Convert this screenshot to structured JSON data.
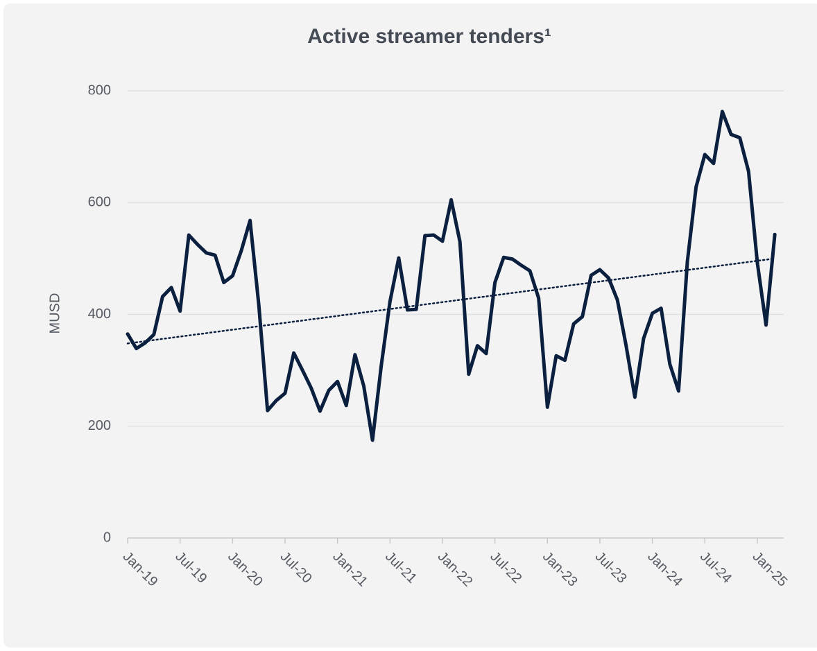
{
  "chart_data": {
    "type": "line",
    "title": "Active streamer tenders¹",
    "y_label": "MUSD",
    "categories": [
      "Jan-19",
      null,
      null,
      null,
      null,
      null,
      "Jul-19",
      null,
      null,
      null,
      null,
      null,
      "Jan-20",
      null,
      null,
      null,
      null,
      null,
      "Jul-20",
      null,
      null,
      null,
      null,
      null,
      "Jan-21",
      null,
      null,
      null,
      null,
      null,
      "Jul-21",
      null,
      null,
      null,
      null,
      null,
      "Jan-22",
      null,
      null,
      null,
      null,
      null,
      "Jul-22",
      null,
      null,
      null,
      null,
      null,
      "Jan-23",
      null,
      null,
      null,
      null,
      null,
      "Jul-23",
      null,
      null,
      null,
      null,
      null,
      "Jan-24",
      null,
      null,
      null,
      null,
      null,
      "Jul-24",
      null,
      null,
      null,
      null,
      null,
      "Jan-25",
      null,
      null
    ],
    "series": [
      {
        "color": "#0b1f3f",
        "values": [
          365,
          339,
          349,
          364,
          432,
          448,
          406,
          542,
          525,
          510,
          506,
          457,
          469,
          514,
          568,
          417,
          228,
          246,
          259,
          331,
          300,
          268,
          227,
          264,
          280,
          237,
          328,
          272,
          175,
          308,
          423,
          501,
          408,
          409,
          541,
          542,
          531,
          605,
          530,
          293,
          344,
          330,
          457,
          502,
          499,
          488,
          478,
          429,
          234,
          326,
          318,
          383,
          396,
          470,
          480,
          465,
          426,
          344,
          252,
          357,
          402,
          411,
          311,
          263,
          494,
          628,
          686,
          670,
          763,
          722,
          716,
          656,
          493,
          381,
          543
        ]
      }
    ],
    "trendline": {
      "start": 348,
      "end": 500,
      "color": "#0b1f3f",
      "style": "dotted"
    },
    "ylim": [
      0,
      800
    ],
    "yticks": [
      0,
      200,
      400,
      600,
      800
    ],
    "grid": true
  }
}
